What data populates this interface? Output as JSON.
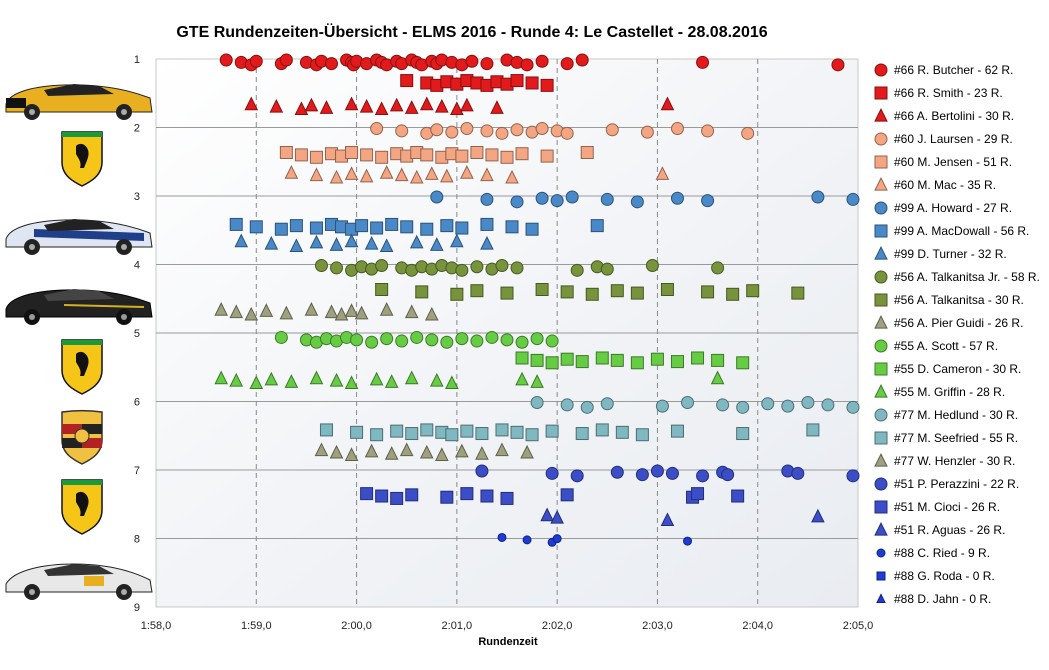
{
  "chart_data": {
    "type": "scatter",
    "title": "GTE Rundenzeiten-Übersicht  - ELMS  2016  - Runde  4: Le Castellet  - 28.08.2016",
    "xlabel": "Rundenzeit",
    "ylabel": "",
    "x_ticks": [
      "1:58,0",
      "1:59,0",
      "2:00,0",
      "2:01,0",
      "2:02,0",
      "2:03,0",
      "2:04,0",
      "2:05,0"
    ],
    "xlim_seconds": [
      118,
      125
    ],
    "y_ticks": [
      "1",
      "2",
      "3",
      "4",
      "5",
      "6",
      "7",
      "8",
      "9"
    ],
    "ylim": [
      1,
      9
    ],
    "y_inverted": true,
    "grid": "vertical dashed + horizontal solid",
    "legend_position": "right",
    "series": [
      {
        "name": "#66 R. Butcher - 62 R.",
        "color": "#e31a1c",
        "marker": "circle",
        "row": 1.05,
        "x": [
          118.7,
          118.85,
          118.95,
          119.0,
          119.25,
          119.3,
          119.5,
          119.6,
          119.65,
          119.75,
          119.9,
          119.95,
          119.97,
          120.0,
          120.1,
          120.2,
          120.25,
          120.3,
          120.4,
          120.45,
          120.55,
          120.6,
          120.65,
          120.75,
          120.8,
          120.85,
          120.95,
          121.05,
          121.15,
          121.3,
          121.5,
          121.6,
          121.7,
          121.85,
          122.1,
          122.25,
          123.45,
          124.8
        ]
      },
      {
        "name": "#66 R. Smith - 23 R.",
        "color": "#e31a1c",
        "marker": "square",
        "row": 1.35,
        "x": [
          120.5,
          120.7,
          120.8,
          120.9,
          121.0,
          121.1,
          121.2,
          121.3,
          121.4,
          121.5,
          121.6,
          121.75,
          121.9
        ]
      },
      {
        "name": "#66 A. Bertolini - 30 R.",
        "color": "#e31a1c",
        "marker": "triangle",
        "row": 1.7,
        "x": [
          118.95,
          119.2,
          119.45,
          119.55,
          119.7,
          119.95,
          120.1,
          120.25,
          120.4,
          120.55,
          120.7,
          120.85,
          121.0,
          121.1,
          121.4,
          123.1
        ]
      },
      {
        "name": "#60 J. Laursen - 29 R.",
        "color": "#f4a582",
        "marker": "circle",
        "row": 2.05,
        "x": [
          120.2,
          120.45,
          120.7,
          120.8,
          120.95,
          121.1,
          121.3,
          121.45,
          121.6,
          121.75,
          121.85,
          122.0,
          122.1,
          122.55,
          122.9,
          123.2,
          123.5,
          123.9
        ]
      },
      {
        "name": "#60 M. Jensen - 51 R.",
        "color": "#f4a582",
        "marker": "square",
        "row": 2.4,
        "x": [
          119.3,
          119.45,
          119.6,
          119.75,
          119.85,
          119.95,
          120.1,
          120.25,
          120.4,
          120.5,
          120.6,
          120.7,
          120.85,
          120.95,
          121.05,
          121.2,
          121.35,
          121.5,
          121.65,
          121.9,
          122.3
        ]
      },
      {
        "name": "#60 M. Mac - 35 R.",
        "color": "#f4a582",
        "marker": "triangle",
        "row": 2.7,
        "x": [
          119.35,
          119.6,
          119.8,
          119.95,
          120.1,
          120.3,
          120.45,
          120.6,
          120.75,
          120.9,
          121.1,
          121.3,
          121.55,
          123.05
        ]
      },
      {
        "name": "#99 A. Howard - 27 R.",
        "color": "#4a89c8",
        "marker": "circle",
        "row": 3.05,
        "x": [
          120.8,
          121.3,
          121.6,
          121.85,
          122.0,
          122.15,
          122.5,
          122.8,
          123.2,
          123.5,
          124.6,
          124.95
        ]
      },
      {
        "name": "#99 A. MacDowall - 56 R.",
        "color": "#4a89c8",
        "marker": "square",
        "row": 3.45,
        "x": [
          118.8,
          119.0,
          119.25,
          119.4,
          119.6,
          119.75,
          119.85,
          119.95,
          120.05,
          120.2,
          120.35,
          120.5,
          120.7,
          120.9,
          121.05,
          121.3,
          121.55,
          121.75,
          122.4
        ]
      },
      {
        "name": "#99 D. Turner - 32 R.",
        "color": "#4a89c8",
        "marker": "triangle",
        "row": 3.7,
        "x": [
          118.85,
          119.15,
          119.4,
          119.6,
          119.8,
          119.95,
          120.15,
          120.3,
          120.6,
          120.8,
          121.0,
          121.3
        ]
      },
      {
        "name": "#56 A. Talkanitsa Jr. - 58 R.",
        "color": "#77933c",
        "marker": "circle",
        "row": 4.05,
        "x": [
          119.65,
          119.8,
          119.95,
          120.05,
          120.15,
          120.25,
          120.45,
          120.55,
          120.65,
          120.75,
          120.85,
          120.95,
          121.05,
          121.2,
          121.35,
          121.45,
          121.6,
          122.2,
          122.4,
          122.5,
          122.95,
          123.6
        ]
      },
      {
        "name": "#56 A. Talkanitsa - 30 R.",
        "color": "#77933c",
        "marker": "square",
        "row": 4.4,
        "x": [
          120.25,
          120.65,
          121.0,
          121.2,
          121.5,
          121.85,
          122.1,
          122.35,
          122.6,
          122.8,
          123.1,
          123.5,
          123.75,
          123.95,
          124.4
        ]
      },
      {
        "name": "#56 A. Pier Guidi - 26 R.",
        "color": "#9ea07e",
        "marker": "triangle",
        "row": 4.7,
        "x": [
          118.65,
          118.8,
          118.95,
          119.1,
          119.3,
          119.55,
          119.75,
          119.85,
          119.95,
          120.05,
          120.3,
          120.55,
          120.75
        ]
      },
      {
        "name": "#55 A. Scott - 57 R.",
        "color": "#66cc44",
        "marker": "circle",
        "row": 5.1,
        "x": [
          119.25,
          119.5,
          119.6,
          119.7,
          119.8,
          119.9,
          120.0,
          120.15,
          120.3,
          120.45,
          120.6,
          120.75,
          120.9,
          121.05,
          121.2,
          121.35,
          121.5,
          121.65,
          121.8,
          121.95
        ]
      },
      {
        "name": "#55 D. Cameron - 30 R.",
        "color": "#66cc44",
        "marker": "square",
        "row": 5.4,
        "x": [
          121.65,
          121.8,
          121.95,
          122.1,
          122.25,
          122.45,
          122.6,
          122.8,
          123.0,
          123.2,
          123.4,
          123.6,
          123.85
        ]
      },
      {
        "name": "#55 M. Griffin - 28 R.",
        "color": "#66cc44",
        "marker": "triangle",
        "row": 5.7,
        "x": [
          118.65,
          118.8,
          119.0,
          119.15,
          119.35,
          119.6,
          119.8,
          119.95,
          120.2,
          120.35,
          120.55,
          120.8,
          120.95,
          121.65,
          121.8,
          123.6
        ]
      },
      {
        "name": "#77 M. Hedlund - 30 R.",
        "color": "#7fb8c0",
        "marker": "circle",
        "row": 6.05,
        "x": [
          121.8,
          122.1,
          122.3,
          122.5,
          123.05,
          123.3,
          123.65,
          123.85,
          124.1,
          124.3,
          124.5,
          124.7,
          124.95
        ]
      },
      {
        "name": "#77 M. Seefried - 55 R.",
        "color": "#7fb8c0",
        "marker": "square",
        "row": 6.45,
        "x": [
          119.7,
          120.0,
          120.2,
          120.4,
          120.55,
          120.7,
          120.85,
          120.95,
          121.1,
          121.25,
          121.45,
          121.6,
          121.75,
          121.95,
          122.25,
          122.45,
          122.65,
          122.85,
          123.2,
          123.85,
          124.55
        ]
      },
      {
        "name": "#77 W. Henzler - 30 R.",
        "color": "#9ea07e",
        "marker": "triangle",
        "row": 6.75,
        "x": [
          119.65,
          119.8,
          119.95,
          120.15,
          120.35,
          120.5,
          120.7,
          120.85,
          121.05,
          121.25,
          121.45,
          121.7
        ]
      },
      {
        "name": "#51 P. Perazzini - 22 R.",
        "color": "#3b4ec8",
        "marker": "circle",
        "row": 7.05,
        "x": [
          121.25,
          121.95,
          122.2,
          122.6,
          122.85,
          123.0,
          123.15,
          123.45,
          123.65,
          123.7,
          124.3,
          124.4,
          124.95
        ]
      },
      {
        "name": "#51 M. Cioci - 26 R.",
        "color": "#3b4ec8",
        "marker": "square",
        "row": 7.38,
        "x": [
          120.1,
          120.25,
          120.4,
          120.55,
          120.9,
          121.1,
          121.3,
          121.5,
          122.1,
          123.35,
          123.4,
          123.8
        ]
      },
      {
        "name": "#51 R. Aguas - 26 R.",
        "color": "#3b4ec8",
        "marker": "triangle",
        "row": 7.7,
        "x": [
          121.9,
          122.0,
          123.1,
          124.6
        ]
      },
      {
        "name": "#88 C. Ried - 9 R.",
        "color": "#1e3bd6",
        "marker": "circle-small",
        "row": 8.02,
        "x": [
          121.45,
          121.7,
          121.95,
          122.0,
          123.3
        ]
      },
      {
        "name": "#88 G. Roda - 0 R.",
        "color": "#1e3bd6",
        "marker": "square-small",
        "row": null,
        "x": []
      },
      {
        "name": "#88 D. Jahn - 0 R.",
        "color": "#1e3bd6",
        "marker": "triangle-small",
        "row": null,
        "x": []
      }
    ]
  }
}
